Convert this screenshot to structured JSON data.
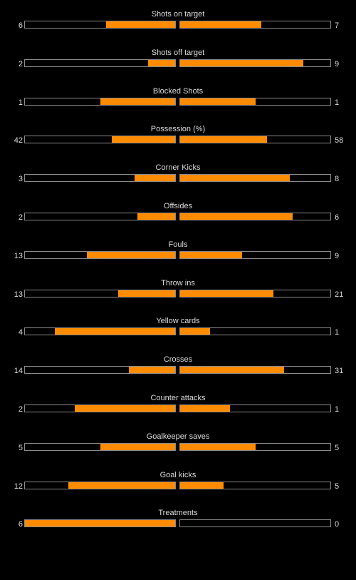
{
  "colors": {
    "background": "#000000",
    "bar_fill": "#ff8c00",
    "bar_border": "#8a8a8a",
    "text": "#dcdcdc"
  },
  "stats": [
    {
      "label": "Shots on target",
      "home": "6",
      "away": "7",
      "home_fill": 0.46,
      "away_fill": 0.54
    },
    {
      "label": "Shots off target",
      "home": "2",
      "away": "9",
      "home_fill": 0.18,
      "away_fill": 0.82
    },
    {
      "label": "Blocked Shots",
      "home": "1",
      "away": "1",
      "home_fill": 0.5,
      "away_fill": 0.5
    },
    {
      "label": "Possession (%)",
      "home": "42",
      "away": "58",
      "home_fill": 0.42,
      "away_fill": 0.58
    },
    {
      "label": "Corner Kicks",
      "home": "3",
      "away": "8",
      "home_fill": 0.27,
      "away_fill": 0.73
    },
    {
      "label": "Offsides",
      "home": "2",
      "away": "6",
      "home_fill": 0.25,
      "away_fill": 0.75
    },
    {
      "label": "Fouls",
      "home": "13",
      "away": "9",
      "home_fill": 0.59,
      "away_fill": 0.41
    },
    {
      "label": "Throw ins",
      "home": "13",
      "away": "21",
      "home_fill": 0.38,
      "away_fill": 0.62
    },
    {
      "label": "Yellow cards",
      "home": "4",
      "away": "1",
      "home_fill": 0.8,
      "away_fill": 0.2
    },
    {
      "label": "Crosses",
      "home": "14",
      "away": "31",
      "home_fill": 0.31,
      "away_fill": 0.69
    },
    {
      "label": "Counter attacks",
      "home": "2",
      "away": "1",
      "home_fill": 0.67,
      "away_fill": 0.33
    },
    {
      "label": "Goalkeeper saves",
      "home": "5",
      "away": "5",
      "home_fill": 0.5,
      "away_fill": 0.5
    },
    {
      "label": "Goal kicks",
      "home": "12",
      "away": "5",
      "home_fill": 0.71,
      "away_fill": 0.29
    },
    {
      "label": "Treatments",
      "home": "6",
      "away": "0",
      "home_fill": 1.0,
      "away_fill": 0.0
    }
  ]
}
